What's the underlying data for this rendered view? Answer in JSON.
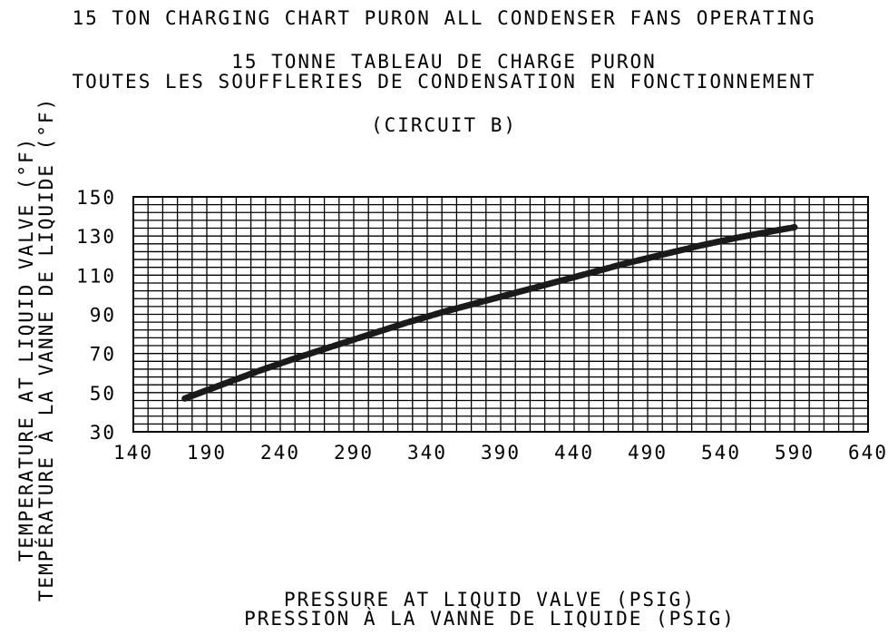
{
  "titles": {
    "line1": "15 TON CHARGING CHART PURON ALL CONDENSER FANS OPERATING",
    "line2": "15 TONNE TABLEAU DE CHARGE PURON",
    "line3": "TOUTES LES SOUFFLERIES DE CONDENSATION EN FONCTIONNEMENT",
    "line4": "(CIRCUIT B)"
  },
  "chart_data": {
    "type": "line",
    "title": "15 TON CHARGING CHART PURON ALL CONDENSER FANS OPERATING",
    "subtitle": [
      "15 TONNE TABLEAU DE CHARGE PURON",
      "TOUTES LES SOUFFLERIES DE CONDENSATION EN FONCTIONNEMENT",
      "(CIRCUIT B)"
    ],
    "xlabel": [
      "PRESSURE AT LIQUID VALVE (PSIG)",
      "PRESSION À LA VANNE DE LIQUIDE (PSIG)"
    ],
    "ylabel": [
      "TEMPERATURE AT LIQUID VALVE (°F)",
      "TEMPÉRATURE À LA VANNE DE LIQUIDE (°F)"
    ],
    "xlim": [
      140,
      640
    ],
    "ylim": [
      30,
      150
    ],
    "x_ticks": [
      140,
      190,
      240,
      290,
      340,
      390,
      440,
      490,
      540,
      590,
      640
    ],
    "y_ticks": [
      30,
      50,
      70,
      90,
      110,
      130,
      150
    ],
    "grid": true,
    "series": [
      {
        "x": [
          175,
          200,
          225,
          250,
          275,
          300,
          325,
          350,
          375,
          400,
          425,
          450,
          475,
          500,
          525,
          550,
          575,
          590
        ],
        "y": [
          47,
          54,
          61,
          67.5,
          73.5,
          79.5,
          85.5,
          91,
          96,
          101,
          106,
          111,
          116,
          120.5,
          125,
          129,
          132.5,
          134.5
        ]
      }
    ]
  }
}
